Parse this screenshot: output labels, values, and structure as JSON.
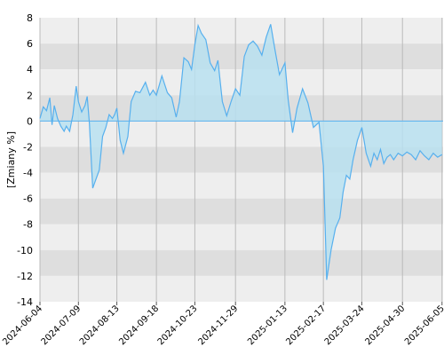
{
  "chart_data": {
    "type": "area",
    "title": "",
    "xlabel": "",
    "ylabel": "[Zmiany %]",
    "ylim": [
      -14,
      8
    ],
    "yticks": [
      8,
      6,
      4,
      2,
      0,
      -2,
      -4,
      -6,
      -8,
      -10,
      -12,
      -14
    ],
    "xlim": [
      "2024-06-04",
      "2025-06-06"
    ],
    "xtick_labels": [
      "2024-06-04",
      "2024-07-09",
      "2024-08-13",
      "2024-09-18",
      "2024-10-23",
      "2024-11-29",
      "2025-01-13",
      "2025-02-17",
      "2025-03-24",
      "2025-04-30",
      "2025-06-05"
    ],
    "grid": true,
    "legend": "none",
    "colors": {
      "line": "#57b0ee",
      "fill": "#b8e0f0",
      "band_light": "#eeeeee",
      "band_dark": "#dedede",
      "grid": "#bbbbbb"
    },
    "series": [
      {
        "x": [
          "2024-06-04",
          "2024-06-07",
          "2024-06-10",
          "2024-06-13",
          "2024-06-15",
          "2024-06-17",
          "2024-06-20",
          "2024-06-23",
          "2024-06-26",
          "2024-06-28",
          "2024-07-01",
          "2024-07-04",
          "2024-07-07",
          "2024-07-09",
          "2024-07-12",
          "2024-07-15",
          "2024-07-17",
          "2024-07-19",
          "2024-07-22",
          "2024-07-25",
          "2024-07-28",
          "2024-07-31",
          "2024-08-03",
          "2024-08-06",
          "2024-08-09",
          "2024-08-11",
          "2024-08-13",
          "2024-08-16",
          "2024-08-19",
          "2024-08-23",
          "2024-08-26",
          "2024-08-30",
          "2024-09-03",
          "2024-09-08",
          "2024-09-12",
          "2024-09-15",
          "2024-09-18",
          "2024-09-23",
          "2024-09-28",
          "2024-10-02",
          "2024-10-06",
          "2024-10-09",
          "2024-10-13",
          "2024-10-17",
          "2024-10-20",
          "2024-10-23",
          "2024-10-26",
          "2024-10-29",
          "2024-11-02",
          "2024-11-06",
          "2024-11-10",
          "2024-11-13",
          "2024-11-17",
          "2024-11-21",
          "2024-11-25",
          "2024-11-29",
          "2024-12-03",
          "2024-12-07",
          "2024-12-11",
          "2024-12-15",
          "2024-12-19",
          "2024-12-23",
          "2024-12-27",
          "2024-12-31",
          "2025-01-04",
          "2025-01-08",
          "2025-01-13",
          "2025-01-16",
          "2025-01-20",
          "2025-01-24",
          "2025-01-29",
          "2025-02-03",
          "2025-02-08",
          "2025-02-13",
          "2025-02-17",
          "2025-02-20",
          "2025-02-24",
          "2025-02-28",
          "2025-03-04",
          "2025-03-07",
          "2025-03-10",
          "2025-03-13",
          "2025-03-16",
          "2025-03-20",
          "2025-03-24",
          "2025-03-28",
          "2025-04-01",
          "2025-04-04",
          "2025-04-07",
          "2025-04-10",
          "2025-04-13",
          "2025-04-16",
          "2025-04-19",
          "2025-04-22",
          "2025-04-26",
          "2025-04-30",
          "2025-05-04",
          "2025-05-08",
          "2025-05-12",
          "2025-05-16",
          "2025-05-20",
          "2025-05-24",
          "2025-05-28",
          "2025-06-01",
          "2025-06-05"
        ],
        "values": [
          0.2,
          1.1,
          0.8,
          1.8,
          -0.3,
          1.2,
          0.2,
          -0.4,
          -0.8,
          -0.4,
          -0.8,
          0.5,
          2.7,
          1.5,
          0.7,
          1.2,
          1.9,
          -0.2,
          -5.2,
          -4.5,
          -3.8,
          -1.2,
          -0.5,
          0.5,
          0.2,
          0.5,
          1.0,
          -1.5,
          -2.5,
          -1.2,
          1.5,
          2.3,
          2.2,
          3.0,
          2.0,
          2.4,
          2.0,
          3.5,
          2.2,
          1.8,
          0.3,
          1.5,
          4.9,
          4.6,
          4.0,
          5.9,
          7.4,
          6.8,
          6.3,
          4.5,
          3.9,
          4.7,
          1.5,
          0.4,
          1.5,
          2.5,
          2.0,
          5.0,
          5.9,
          6.2,
          5.8,
          5.1,
          6.5,
          7.5,
          5.5,
          3.6,
          4.5,
          1.6,
          -0.9,
          1.0,
          2.5,
          1.4,
          -0.5,
          -0.1,
          -3.5,
          -12.3,
          -10.0,
          -8.3,
          -7.5,
          -5.5,
          -4.2,
          -4.5,
          -3.0,
          -1.5,
          -0.5,
          -2.5,
          -3.5,
          -2.5,
          -3.0,
          -2.2,
          -3.3,
          -2.8,
          -2.6,
          -3.0,
          -2.5,
          -2.7,
          -2.4,
          -2.6,
          -3.0,
          -2.3,
          -2.7,
          -3.0,
          -2.5,
          -2.8,
          -2.6
        ]
      }
    ]
  }
}
